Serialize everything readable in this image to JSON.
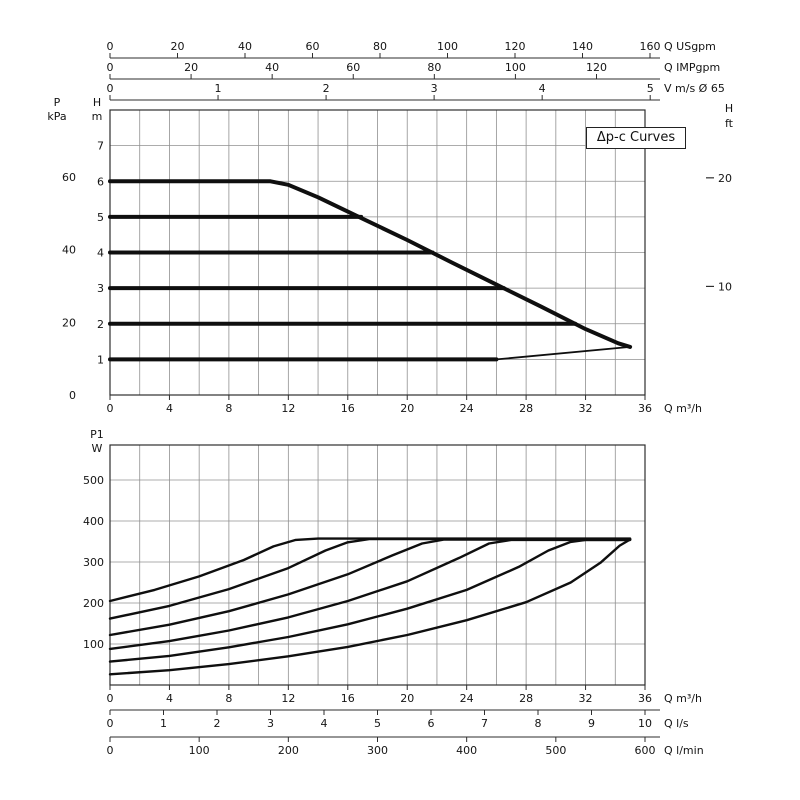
{
  "page_bg": "#ffffff",
  "ink_color": "#0f0f0f",
  "grid_color": "#909090",
  "frame_color": "#2e2e2e",
  "chart_data": [
    {
      "id": "head-vs-flow",
      "type": "line",
      "title": "Δp-c Curves",
      "x_range": [
        0,
        36
      ],
      "y_range_m": [
        0,
        8
      ],
      "grid": {
        "x_step": 2,
        "y_step": 1,
        "on": true
      },
      "axes": {
        "top": [
          {
            "label": "Q USgpm",
            "ticks": [
              0,
              20,
              40,
              60,
              80,
              100,
              120,
              140,
              160
            ],
            "m3h_per_unit": 0.2271
          },
          {
            "label": "Q IMPgpm",
            "ticks": [
              0,
              20,
              40,
              60,
              80,
              100,
              120
            ],
            "m3h_per_unit": 0.2728
          },
          {
            "label": "V m/s Ø 65",
            "ticks": [
              0,
              1,
              2,
              3,
              4,
              5
            ],
            "m3h_per_unit": 7.27
          }
        ],
        "bottom": [
          {
            "label": "Q m³/h",
            "ticks": [
              0,
              4,
              8,
              12,
              16,
              20,
              24,
              28,
              32,
              36
            ],
            "m3h_per_unit": 1
          }
        ],
        "left": [
          {
            "label_lines": [
              "P",
              "kPa"
            ],
            "ticks": [
              0,
              20,
              40,
              60
            ],
            "m_per_unit": 0.10197
          },
          {
            "label_lines": [
              "H",
              "m"
            ],
            "ticks": [
              1,
              2,
              3,
              4,
              5,
              6,
              7
            ],
            "m_per_unit": 1
          }
        ],
        "right": [
          {
            "label_lines": [
              "H",
              "ft"
            ],
            "ticks": [
              10,
              20
            ],
            "m_per_unit": 0.3048
          }
        ]
      },
      "series": [
        {
          "name": "max-curve-6m",
          "width": 4,
          "points": [
            [
              0,
              6
            ],
            [
              10.8,
              6
            ],
            [
              12,
              5.9
            ],
            [
              14,
              5.55
            ],
            [
              17,
              4.95
            ],
            [
              20,
              4.35
            ],
            [
              23,
              3.72
            ],
            [
              26,
              3.1
            ],
            [
              29,
              2.48
            ],
            [
              32,
              1.85
            ],
            [
              34.2,
              1.45
            ],
            [
              35,
              1.35
            ]
          ]
        },
        {
          "name": "dp-c-5m",
          "width": 4,
          "points": [
            [
              0,
              5
            ],
            [
              16.9,
              5
            ]
          ]
        },
        {
          "name": "dp-c-4m",
          "width": 4,
          "points": [
            [
              0,
              4
            ],
            [
              21.7,
              4
            ]
          ]
        },
        {
          "name": "dp-c-3m",
          "width": 4,
          "points": [
            [
              0,
              3
            ],
            [
              26.5,
              3
            ]
          ]
        },
        {
          "name": "dp-c-2m",
          "width": 4,
          "points": [
            [
              0,
              2
            ],
            [
              31.3,
              2
            ]
          ]
        },
        {
          "name": "dp-c-1m",
          "width": 4,
          "points": [
            [
              0,
              1
            ],
            [
              26,
              1
            ]
          ]
        },
        {
          "name": "min-curve",
          "width": 1.8,
          "points": [
            [
              26,
              1
            ],
            [
              35,
              1.35
            ]
          ]
        }
      ]
    },
    {
      "id": "power-vs-flow",
      "type": "line",
      "title": "P1",
      "y_label_lines": [
        "P1",
        "W"
      ],
      "y_ticks": [
        100,
        200,
        300,
        400,
        500
      ],
      "x_range": [
        0,
        36
      ],
      "grid": {
        "x_step": 2,
        "y_step": 100,
        "on": true
      },
      "axes": {
        "bottom": [
          {
            "label": "Q m³/h",
            "ticks": [
              0,
              4,
              8,
              12,
              16,
              20,
              24,
              28,
              32,
              36
            ],
            "m3h_per_unit": 1
          },
          {
            "label": "Q l/s",
            "ticks": [
              0,
              1,
              2,
              3,
              4,
              5,
              6,
              7,
              8,
              9,
              10
            ],
            "m3h_per_unit": 3.6
          },
          {
            "label": "Q l/min",
            "ticks": [
              0,
              100,
              200,
              300,
              400,
              500,
              600
            ],
            "m3h_per_unit": 0.06
          }
        ]
      },
      "series": [
        {
          "name": "p1-at-6m",
          "width": 2.4,
          "points": [
            [
              0,
              205
            ],
            [
              3,
              232
            ],
            [
              6,
              265
            ],
            [
              9,
              305
            ],
            [
              11,
              338
            ],
            [
              12.5,
              354
            ],
            [
              14,
              357
            ],
            [
              35,
              357
            ]
          ]
        },
        {
          "name": "p1-at-5m",
          "width": 2.4,
          "points": [
            [
              0,
              162
            ],
            [
              4,
              193
            ],
            [
              8,
              234
            ],
            [
              12,
              285
            ],
            [
              14.5,
              328
            ],
            [
              16,
              348
            ],
            [
              17.5,
              356
            ],
            [
              35,
              356
            ]
          ]
        },
        {
          "name": "p1-at-4m",
          "width": 2.4,
          "points": [
            [
              0,
              122
            ],
            [
              4,
              147
            ],
            [
              8,
              180
            ],
            [
              12,
              221
            ],
            [
              16,
              270
            ],
            [
              19,
              316
            ],
            [
              21,
              345
            ],
            [
              22.5,
              355
            ],
            [
              35,
              355
            ]
          ]
        },
        {
          "name": "p1-at-3m",
          "width": 2.4,
          "points": [
            [
              0,
              88
            ],
            [
              4,
              107
            ],
            [
              8,
              133
            ],
            [
              12,
              165
            ],
            [
              16,
              205
            ],
            [
              20,
              253
            ],
            [
              23.5,
              310
            ],
            [
              25.5,
              345
            ],
            [
              27,
              354
            ],
            [
              35,
              354
            ]
          ]
        },
        {
          "name": "p1-at-2m",
          "width": 2.4,
          "points": [
            [
              0,
              57
            ],
            [
              4,
              71
            ],
            [
              8,
              92
            ],
            [
              12,
              117
            ],
            [
              16,
              148
            ],
            [
              20,
              186
            ],
            [
              24,
              232
            ],
            [
              27.5,
              288
            ],
            [
              29.5,
              328
            ],
            [
              31,
              349
            ],
            [
              32,
              354
            ],
            [
              35,
              354
            ]
          ]
        },
        {
          "name": "p1-at-1m",
          "width": 2.4,
          "points": [
            [
              0,
              26
            ],
            [
              4,
              36
            ],
            [
              8,
              51
            ],
            [
              12,
              70
            ],
            [
              16,
              93
            ],
            [
              20,
              122
            ],
            [
              24,
              158
            ],
            [
              28,
              202
            ],
            [
              31,
              250
            ],
            [
              33,
              298
            ],
            [
              34.3,
              340
            ],
            [
              35,
              355
            ]
          ]
        }
      ]
    }
  ]
}
